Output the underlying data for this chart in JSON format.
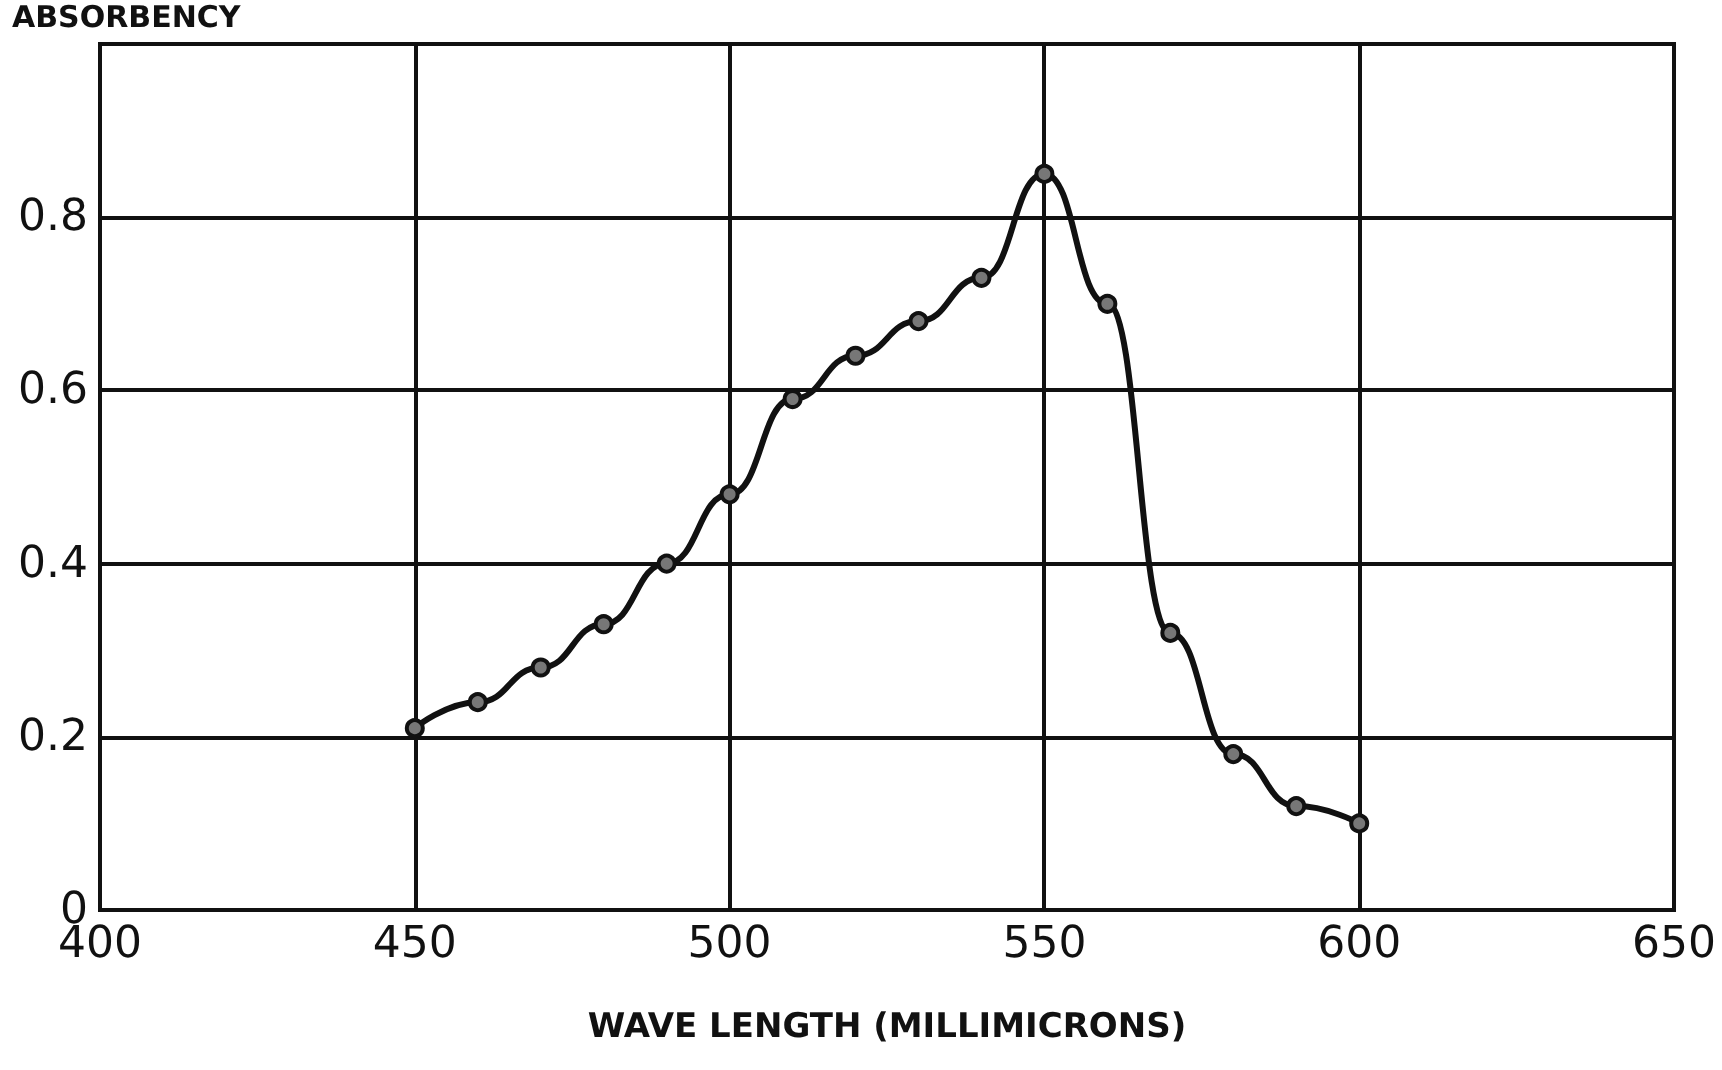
{
  "chart_data": {
    "type": "line",
    "xlabel": "WAVE LENGTH (MILLIMICRONS)",
    "ylabel": "ABSORBENCY",
    "x": [
      450,
      460,
      470,
      480,
      490,
      500,
      510,
      520,
      530,
      540,
      550,
      560,
      570,
      580,
      590,
      600
    ],
    "series": [
      {
        "color": "#111111",
        "values": [
          0.21,
          0.24,
          0.28,
          0.33,
          0.4,
          0.48,
          0.59,
          0.64,
          0.68,
          0.73,
          0.85,
          0.7,
          0.32,
          0.18,
          0.12,
          0.1
        ]
      }
    ],
    "xlim": [
      400,
      650
    ],
    "xticks": [
      400,
      450,
      500,
      550,
      600,
      650
    ],
    "ylim": [
      0,
      1
    ],
    "yticks": [
      "0",
      0.2,
      0.4,
      0.6,
      0.8
    ],
    "grid": true,
    "marker": "circle",
    "line_style": "solid"
  }
}
